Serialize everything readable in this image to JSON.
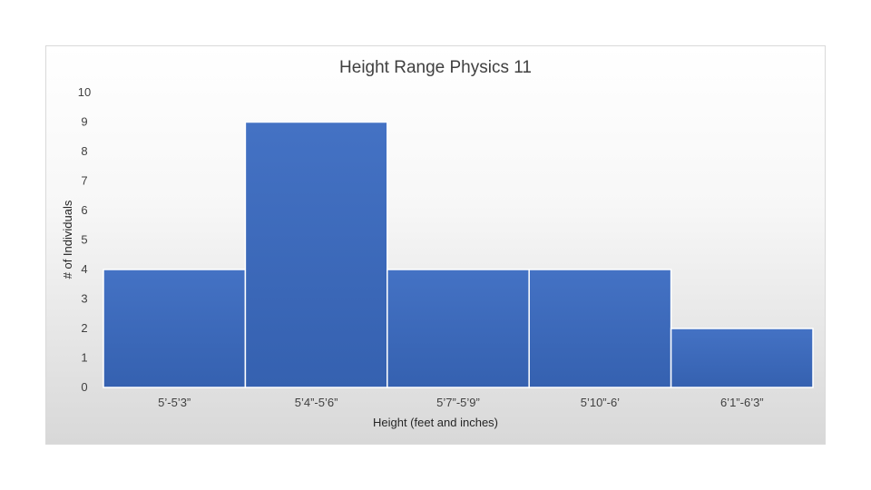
{
  "chart_data": {
    "type": "bar",
    "title": "Height Range Physics 11",
    "xlabel": "Height (feet and inches)",
    "ylabel": "# of Individuals",
    "categories": [
      "5’-5’3”",
      "5’4”-5’6”",
      "5’7”-5’9”",
      "5’10”-6’",
      "6’1”-6’3”"
    ],
    "values": [
      4,
      9,
      4,
      4,
      2
    ],
    "ylim": [
      0,
      10
    ],
    "yticks": [
      0,
      1,
      2,
      3,
      4,
      5,
      6,
      7,
      8,
      9,
      10
    ],
    "grid": false,
    "bar_color": "#4472c4"
  }
}
